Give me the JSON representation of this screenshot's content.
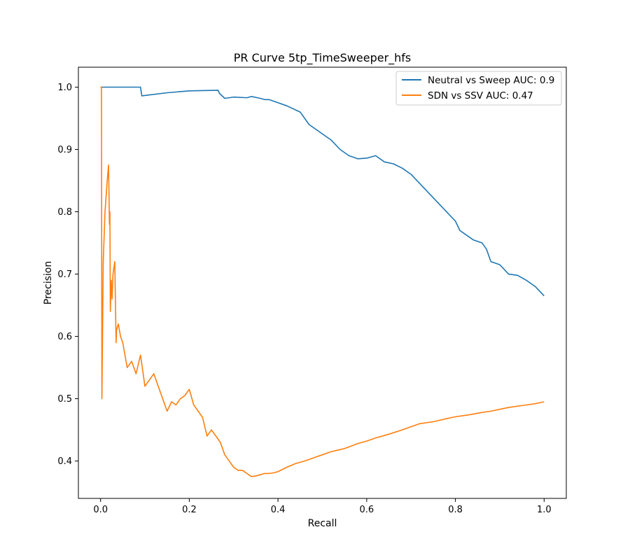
{
  "chart_data": {
    "type": "line",
    "title": "PR Curve 5tp_TimeSweeper_hfs",
    "xlabel": "Recall",
    "ylabel": "Precision",
    "xlim": [
      -0.05,
      1.05
    ],
    "ylim": [
      0.34,
      1.032
    ],
    "xticks": [
      0.0,
      0.2,
      0.4,
      0.6,
      0.8,
      1.0
    ],
    "xtick_labels": [
      "0.0",
      "0.2",
      "0.4",
      "0.6",
      "0.8",
      "1.0"
    ],
    "yticks": [
      0.4,
      0.5,
      0.6,
      0.7,
      0.8,
      0.9,
      1.0
    ],
    "ytick_labels": [
      "0.4",
      "0.5",
      "0.6",
      "0.7",
      "0.8",
      "0.9",
      "1.0"
    ],
    "grid": false,
    "legend_position": "top-right",
    "series": [
      {
        "name": "Neutral vs Sweep AUC: 0.9",
        "color": "#1f77b4",
        "x": [
          0.0,
          0.05,
          0.09,
          0.093,
          0.15,
          0.2,
          0.265,
          0.268,
          0.28,
          0.3,
          0.33,
          0.34,
          0.36,
          0.37,
          0.38,
          0.4,
          0.42,
          0.45,
          0.47,
          0.5,
          0.52,
          0.54,
          0.56,
          0.58,
          0.6,
          0.62,
          0.64,
          0.66,
          0.68,
          0.7,
          0.72,
          0.74,
          0.76,
          0.78,
          0.8,
          0.81,
          0.82,
          0.84,
          0.86,
          0.87,
          0.88,
          0.9,
          0.92,
          0.94,
          0.96,
          0.98,
          1.0
        ],
        "y": [
          1.0,
          1.0,
          1.0,
          0.986,
          0.991,
          0.994,
          0.995,
          0.99,
          0.982,
          0.984,
          0.983,
          0.985,
          0.982,
          0.98,
          0.98,
          0.975,
          0.97,
          0.96,
          0.94,
          0.925,
          0.915,
          0.9,
          0.89,
          0.885,
          0.886,
          0.89,
          0.88,
          0.877,
          0.87,
          0.86,
          0.845,
          0.83,
          0.815,
          0.8,
          0.785,
          0.77,
          0.765,
          0.755,
          0.75,
          0.74,
          0.72,
          0.715,
          0.7,
          0.698,
          0.69,
          0.68,
          0.665
        ]
      },
      {
        "name": "SDN vs SSV AUC: 0.47",
        "color": "#ff7f0e",
        "x": [
          0.0,
          0.002,
          0.003,
          0.006,
          0.01,
          0.015,
          0.018,
          0.02,
          0.021,
          0.022,
          0.024,
          0.026,
          0.028,
          0.032,
          0.035,
          0.036,
          0.04,
          0.045,
          0.05,
          0.055,
          0.06,
          0.07,
          0.08,
          0.09,
          0.1,
          0.11,
          0.12,
          0.13,
          0.14,
          0.15,
          0.16,
          0.17,
          0.18,
          0.19,
          0.2,
          0.21,
          0.22,
          0.23,
          0.24,
          0.25,
          0.26,
          0.27,
          0.28,
          0.29,
          0.3,
          0.31,
          0.32,
          0.33,
          0.34,
          0.35,
          0.36,
          0.37,
          0.38,
          0.39,
          0.4,
          0.42,
          0.44,
          0.46,
          0.48,
          0.5,
          0.52,
          0.55,
          0.58,
          0.6,
          0.62,
          0.65,
          0.68,
          0.7,
          0.72,
          0.75,
          0.78,
          0.8,
          0.83,
          0.86,
          0.88,
          0.9,
          0.92,
          0.95,
          0.98,
          1.0
        ],
        "y": [
          1.0,
          1.0,
          0.5,
          0.72,
          0.8,
          0.85,
          0.875,
          0.78,
          0.8,
          0.64,
          0.69,
          0.66,
          0.7,
          0.72,
          0.59,
          0.61,
          0.62,
          0.6,
          0.59,
          0.57,
          0.55,
          0.56,
          0.54,
          0.57,
          0.52,
          0.53,
          0.54,
          0.52,
          0.5,
          0.48,
          0.495,
          0.49,
          0.5,
          0.505,
          0.515,
          0.49,
          0.48,
          0.47,
          0.44,
          0.45,
          0.44,
          0.43,
          0.41,
          0.4,
          0.39,
          0.385,
          0.385,
          0.38,
          0.375,
          0.376,
          0.378,
          0.38,
          0.38,
          0.381,
          0.383,
          0.39,
          0.396,
          0.4,
          0.405,
          0.41,
          0.415,
          0.42,
          0.428,
          0.432,
          0.437,
          0.443,
          0.45,
          0.455,
          0.46,
          0.463,
          0.468,
          0.471,
          0.474,
          0.478,
          0.48,
          0.483,
          0.486,
          0.489,
          0.492,
          0.495
        ]
      }
    ]
  }
}
